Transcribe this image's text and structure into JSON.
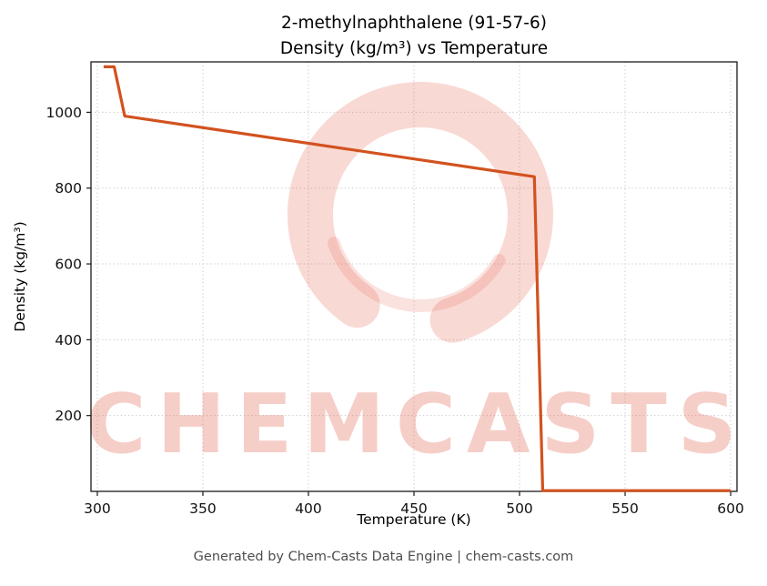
{
  "footer": {
    "caption": "Generated by Chem-Casts Data Engine | chem-casts.com"
  },
  "chart_data": {
    "type": "line",
    "title": "2-methylnaphthalene (91-57-6)",
    "subtitle": "Density (kg/m³) vs Temperature",
    "xlabel": "Temperature (K)",
    "ylabel": "Density (kg/m³)",
    "xlim": [
      297,
      603
    ],
    "ylim": [
      0,
      1133
    ],
    "xticks": [
      300,
      350,
      400,
      450,
      500,
      550,
      600
    ],
    "yticks": [
      200,
      400,
      600,
      800,
      1000
    ],
    "grid": true,
    "legend": "none",
    "line_color": "#d2521f",
    "series": [
      {
        "name": "density",
        "points": [
          [
            303,
            1120
          ],
          [
            308,
            1120
          ],
          [
            313,
            990
          ],
          [
            507,
            830
          ],
          [
            511,
            2
          ],
          [
            600,
            2
          ]
        ]
      }
    ],
    "watermark": {
      "text": "CHEMCASTS",
      "color": "#e4604b"
    }
  }
}
